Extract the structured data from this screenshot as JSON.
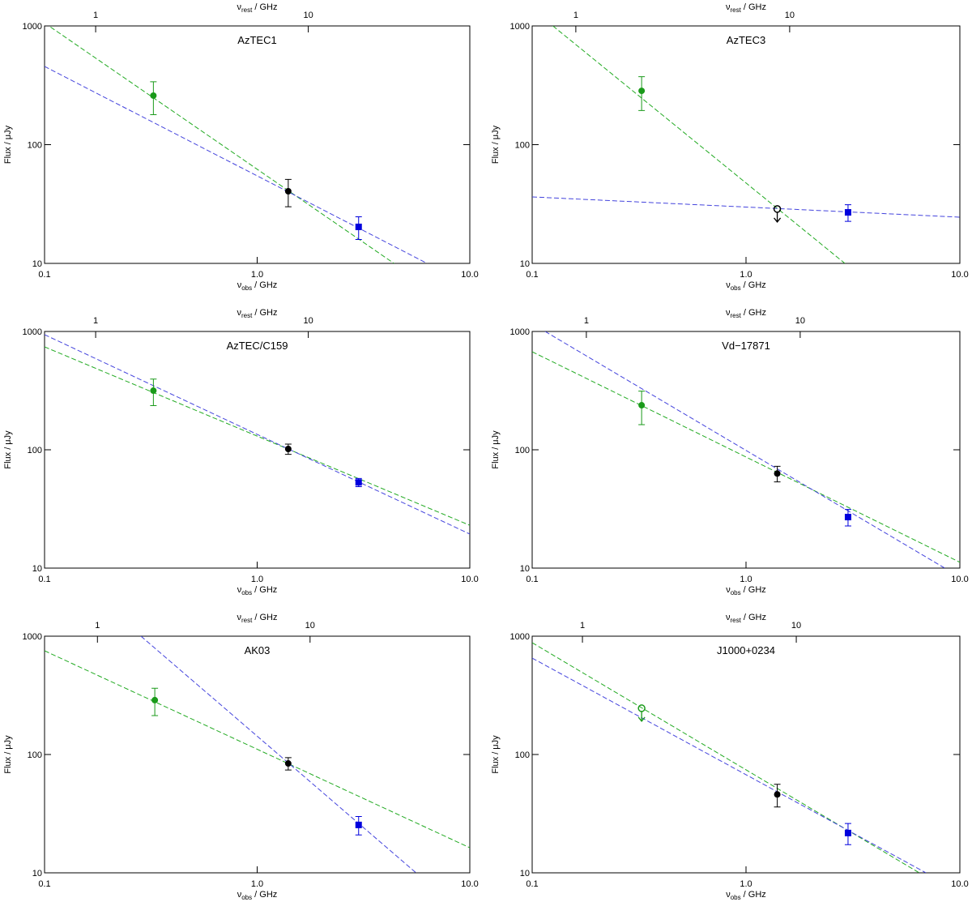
{
  "chart_data": [
    {
      "type": "scatter",
      "title": "AzTEC1",
      "xlog": true,
      "ylog": true,
      "xlabel": [
        "ν",
        "obs",
        " / GHz"
      ],
      "x2label": [
        "ν",
        "rest",
        " / GHz"
      ],
      "ylabel": [
        "Flux / ",
        "μ",
        "Jy"
      ],
      "xlim": [
        0.1,
        10
      ],
      "xticks": [
        0.1,
        {
          "value": 1,
          "label": "1.0"
        },
        {
          "value": 10,
          "label": "10.0"
        }
      ],
      "x2lim": [
        0.575,
        57.5
      ],
      "x2ticks": [
        1,
        10
      ],
      "ylim": [
        10,
        1000
      ],
      "yticks": [
        10,
        100,
        1000
      ],
      "points": [
        {
          "x": 0.325,
          "value": 259,
          "error": 80,
          "color": "#1a9a1a",
          "marker": "circle"
        },
        {
          "x": 1.4,
          "value": 40.5,
          "error": 10.5,
          "color": "#000000",
          "marker": "circle"
        },
        {
          "x": 3.0,
          "value": 20.3,
          "error": 4.4,
          "color": "#0000dd",
          "marker": "square"
        }
      ],
      "fits": [
        {
          "color": "#22aa22",
          "x": [
            0.1,
            4.4
          ],
          "values": [
            1060,
            10
          ]
        },
        {
          "color": "#4444dd",
          "x": [
            0.1,
            6.3
          ],
          "values": [
            456,
            10
          ]
        }
      ]
    },
    {
      "type": "scatter",
      "title": "AzTEC3",
      "xlog": true,
      "ylog": true,
      "xlabel": [
        "ν",
        "obs",
        " / GHz"
      ],
      "x2label": [
        "ν",
        "rest",
        " / GHz"
      ],
      "ylabel": [
        "Flux / ",
        "μ",
        "Jy"
      ],
      "xlim": [
        0.1,
        10
      ],
      "xticks": [
        0.1,
        {
          "value": 1,
          "label": "1.0"
        },
        {
          "value": 10,
          "label": "10.0"
        }
      ],
      "x2lim": [
        0.625,
        62.5
      ],
      "x2ticks": [
        1,
        10
      ],
      "ylim": [
        10,
        1000
      ],
      "yticks": [
        10,
        100,
        1000
      ],
      "points": [
        {
          "x": 0.325,
          "value": 284,
          "error": 90,
          "color": "#1a9a1a",
          "marker": "circle"
        },
        {
          "x": 1.4,
          "value": 28.7,
          "color": "#000000",
          "marker": "circle",
          "upper_limit": true
        },
        {
          "x": 3.0,
          "value": 26.9,
          "error": 4.3,
          "color": "#0000dd",
          "marker": "square"
        }
      ],
      "fits": [
        {
          "color": "#22aa22",
          "x": [
            0.125,
            2.9
          ],
          "values": [
            1000,
            10
          ]
        },
        {
          "color": "#4444dd",
          "x": [
            0.1,
            10
          ],
          "values": [
            36.3,
            24.5
          ]
        }
      ]
    },
    {
      "type": "scatter",
      "title": "AzTEC/C159",
      "xlog": true,
      "ylog": true,
      "xlabel": [
        "ν",
        "obs",
        " / GHz"
      ],
      "x2label": [
        "ν",
        "rest",
        " / GHz"
      ],
      "ylabel": [
        "Flux / ",
        "μ",
        "Jy"
      ],
      "xlim": [
        0.1,
        10
      ],
      "xticks": [
        0.1,
        {
          "value": 1,
          "label": "1.0"
        },
        {
          "value": 10,
          "label": "10.0"
        }
      ],
      "x2lim": [
        0.575,
        57.5
      ],
      "x2ticks": [
        1,
        10
      ],
      "ylim": [
        10,
        1000
      ],
      "yticks": [
        10,
        100,
        1000
      ],
      "points": [
        {
          "x": 0.325,
          "value": 316,
          "error": 80,
          "color": "#1a9a1a",
          "marker": "circle"
        },
        {
          "x": 1.4,
          "value": 101.6,
          "error": 10,
          "color": "#000000",
          "marker": "circle"
        },
        {
          "x": 3.0,
          "value": 53,
          "error": 4.2,
          "color": "#0000dd",
          "marker": "square"
        }
      ],
      "fits": [
        {
          "color": "#22aa22",
          "x": [
            0.1,
            10
          ],
          "values": [
            741,
            23
          ]
        },
        {
          "color": "#4444dd",
          "x": [
            0.1,
            10
          ],
          "values": [
            940,
            19.4
          ]
        }
      ]
    },
    {
      "type": "scatter",
      "title": "Vd−17871",
      "xlog": true,
      "ylog": true,
      "xlabel": [
        "ν",
        "obs",
        " / GHz"
      ],
      "x2label": [
        "ν",
        "rest",
        " / GHz"
      ],
      "ylabel": [
        "Flux / ",
        "μ",
        "Jy"
      ],
      "xlim": [
        0.1,
        10
      ],
      "xticks": [
        0.1,
        {
          "value": 1,
          "label": "1.0"
        },
        {
          "value": 10,
          "label": "10.0"
        }
      ],
      "x2lim": [
        0.558,
        55.8
      ],
      "x2ticks": [
        1,
        10
      ],
      "ylim": [
        10,
        1000
      ],
      "yticks": [
        10,
        100,
        1000
      ],
      "points": [
        {
          "x": 0.325,
          "value": 238,
          "error": 75,
          "color": "#1a9a1a",
          "marker": "circle"
        },
        {
          "x": 1.4,
          "value": 63,
          "error": 9.5,
          "color": "#000000",
          "marker": "circle"
        },
        {
          "x": 3.0,
          "value": 27,
          "error": 4.3,
          "color": "#0000dd",
          "marker": "square"
        }
      ],
      "fits": [
        {
          "color": "#22aa22",
          "x": [
            0.1,
            10
          ],
          "values": [
            674,
            11.2
          ]
        },
        {
          "color": "#4444dd",
          "x": [
            0.115,
            8.5
          ],
          "values": [
            1000,
            10
          ]
        }
      ]
    },
    {
      "type": "scatter",
      "title": "AK03",
      "xlog": true,
      "ylog": true,
      "xlabel": [
        "ν",
        "obs",
        " / GHz"
      ],
      "x2label": [
        "ν",
        "rest",
        " / GHz"
      ],
      "ylabel": [
        "Flux / ",
        "μ",
        "Jy"
      ],
      "xlim": [
        0.1,
        10
      ],
      "xticks": [
        0.1,
        {
          "value": 1,
          "label": "1.0"
        },
        {
          "value": 10,
          "label": "10.0"
        }
      ],
      "x2lim": [
        0.564,
        56.4
      ],
      "x2ticks": [
        1,
        10
      ],
      "ylim": [
        10,
        1000
      ],
      "yticks": [
        10,
        100,
        1000
      ],
      "points": [
        {
          "x": 0.33,
          "value": 288,
          "error": 75,
          "color": "#1a9a1a",
          "marker": "circle"
        },
        {
          "x": 1.4,
          "value": 84,
          "error": 10,
          "color": "#000000",
          "marker": "circle"
        },
        {
          "x": 3.0,
          "value": 25.4,
          "error": 4.5,
          "color": "#0000dd",
          "marker": "square"
        }
      ],
      "fits": [
        {
          "color": "#22aa22",
          "x": [
            0.1,
            10
          ],
          "values": [
            753,
            16.3
          ]
        },
        {
          "color": "#4444dd",
          "x": [
            0.284,
            5.59
          ],
          "values": [
            1000,
            10
          ]
        }
      ]
    },
    {
      "type": "scatter",
      "title": "J1000+0234",
      "xlog": true,
      "ylog": true,
      "xlabel": [
        "ν",
        "obs",
        " / GHz"
      ],
      "x2label": [
        "ν",
        "rest",
        " / GHz"
      ],
      "ylabel": [
        "Flux / ",
        "μ",
        "Jy"
      ],
      "xlim": [
        0.1,
        10
      ],
      "xticks": [
        0.1,
        {
          "value": 1,
          "label": "1.0"
        },
        {
          "value": 10,
          "label": "10.0"
        }
      ],
      "x2lim": [
        0.582,
        58.2
      ],
      "x2ticks": [
        1,
        10
      ],
      "ylim": [
        10,
        1000
      ],
      "yticks": [
        10,
        100,
        1000
      ],
      "points": [
        {
          "x": 0.325,
          "value": 246,
          "color": "#1a9a1a",
          "marker": "circle",
          "upper_limit": true
        },
        {
          "x": 1.4,
          "value": 46,
          "error": 10,
          "color": "#000000",
          "marker": "circle"
        },
        {
          "x": 3.0,
          "value": 21.7,
          "error": 4.4,
          "color": "#0000dd",
          "marker": "square"
        }
      ],
      "fits": [
        {
          "color": "#22aa22",
          "x": [
            0.1,
            6.46
          ],
          "values": [
            881,
            10
          ]
        },
        {
          "color": "#4444dd",
          "x": [
            0.1,
            6.94
          ],
          "values": [
            653,
            10
          ]
        }
      ]
    }
  ]
}
